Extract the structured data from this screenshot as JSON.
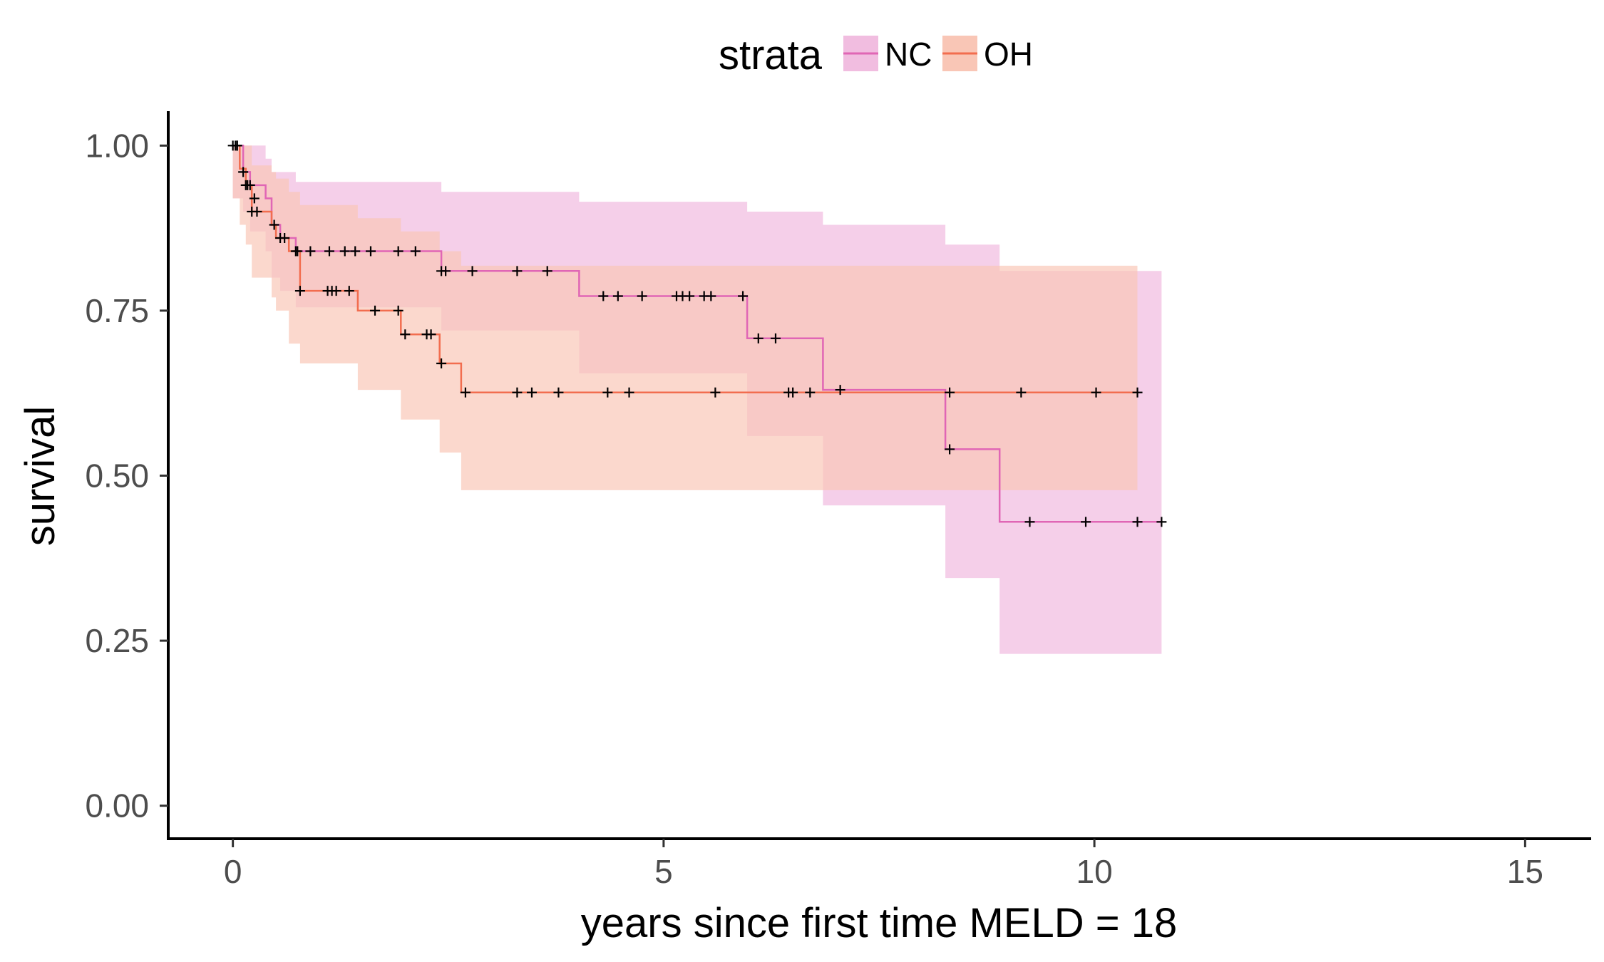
{
  "chart_data": {
    "type": "line",
    "subtype": "kaplan-meier",
    "title": "",
    "xlabel": "years since first time MELD = 18",
    "ylabel": "survival",
    "xlim": [
      -0.75,
      15.75
    ],
    "ylim": [
      -0.05,
      1.05
    ],
    "x_ticks": [
      0,
      5,
      10,
      15
    ],
    "x_tick_labels": [
      "0",
      "5",
      "10",
      "15"
    ],
    "y_ticks": [
      0,
      0.25,
      0.5,
      0.75,
      1
    ],
    "y_tick_labels": [
      "0.00",
      "0.25",
      "0.50",
      "0.75",
      "1.00"
    ],
    "grid": false,
    "legend": {
      "title": "strata",
      "position": "top"
    },
    "series": [
      {
        "name": "NC",
        "color": "#e066b5",
        "ribbon_color": "#f1bde0",
        "steps": [
          [
            0,
            1.0
          ],
          [
            0.12,
            0.96
          ],
          [
            0.2,
            0.94
          ],
          [
            0.38,
            0.92
          ],
          [
            0.45,
            0.88
          ],
          [
            0.55,
            0.86
          ],
          [
            0.73,
            0.84
          ],
          [
            2.42,
            0.81
          ],
          [
            4.02,
            0.772
          ],
          [
            5.97,
            0.708
          ],
          [
            6.85,
            0.63
          ],
          [
            8.27,
            0.54
          ],
          [
            8.9,
            0.43
          ],
          [
            10.78,
            0.43
          ]
        ],
        "lower": [
          [
            0,
            0.92
          ],
          [
            0.12,
            0.9
          ],
          [
            0.2,
            0.87
          ],
          [
            0.38,
            0.84
          ],
          [
            0.45,
            0.8
          ],
          [
            0.55,
            0.78
          ],
          [
            0.73,
            0.755
          ],
          [
            2.42,
            0.72
          ],
          [
            4.02,
            0.655
          ],
          [
            5.97,
            0.56
          ],
          [
            6.85,
            0.455
          ],
          [
            8.27,
            0.345
          ],
          [
            8.9,
            0.23
          ],
          [
            10.78,
            0.23
          ]
        ],
        "upper": [
          [
            0,
            1.0
          ],
          [
            0.12,
            1.0
          ],
          [
            0.2,
            1.0
          ],
          [
            0.38,
            0.98
          ],
          [
            0.45,
            0.96
          ],
          [
            0.55,
            0.96
          ],
          [
            0.73,
            0.945
          ],
          [
            2.42,
            0.93
          ],
          [
            4.02,
            0.915
          ],
          [
            5.97,
            0.9
          ],
          [
            6.85,
            0.88
          ],
          [
            8.27,
            0.85
          ],
          [
            8.9,
            0.81
          ],
          [
            10.78,
            0.81
          ]
        ],
        "censors": [
          [
            0.0,
            1.0
          ],
          [
            0.03,
            1.0
          ],
          [
            0.05,
            1.0
          ],
          [
            0.12,
            0.96
          ],
          [
            0.17,
            0.94
          ],
          [
            0.2,
            0.94
          ],
          [
            0.25,
            0.92
          ],
          [
            0.48,
            0.88
          ],
          [
            0.55,
            0.86
          ],
          [
            0.6,
            0.86
          ],
          [
            0.73,
            0.84
          ],
          [
            0.75,
            0.84
          ],
          [
            0.9,
            0.84
          ],
          [
            1.12,
            0.84
          ],
          [
            1.3,
            0.84
          ],
          [
            1.42,
            0.84
          ],
          [
            1.6,
            0.84
          ],
          [
            1.92,
            0.84
          ],
          [
            2.12,
            0.84
          ],
          [
            2.42,
            0.81
          ],
          [
            2.47,
            0.81
          ],
          [
            2.78,
            0.81
          ],
          [
            3.3,
            0.81
          ],
          [
            3.65,
            0.81
          ],
          [
            4.3,
            0.772
          ],
          [
            4.47,
            0.772
          ],
          [
            4.75,
            0.772
          ],
          [
            5.15,
            0.772
          ],
          [
            5.22,
            0.772
          ],
          [
            5.3,
            0.772
          ],
          [
            5.47,
            0.772
          ],
          [
            5.55,
            0.772
          ],
          [
            5.92,
            0.772
          ],
          [
            6.1,
            0.708
          ],
          [
            6.3,
            0.708
          ],
          [
            7.05,
            0.63
          ],
          [
            8.32,
            0.54
          ],
          [
            9.25,
            0.43
          ],
          [
            9.9,
            0.43
          ],
          [
            10.5,
            0.43
          ],
          [
            10.78,
            0.43
          ]
        ]
      },
      {
        "name": "OH",
        "color": "#f26d4f",
        "ribbon_color": "#f9c6b6",
        "steps": [
          [
            0,
            1.0
          ],
          [
            0.08,
            0.965
          ],
          [
            0.15,
            0.94
          ],
          [
            0.22,
            0.9
          ],
          [
            0.45,
            0.88
          ],
          [
            0.5,
            0.86
          ],
          [
            0.65,
            0.84
          ],
          [
            0.78,
            0.78
          ],
          [
            1.45,
            0.75
          ],
          [
            1.95,
            0.714
          ],
          [
            2.4,
            0.67
          ],
          [
            2.65,
            0.626
          ],
          [
            10.5,
            0.626
          ]
        ],
        "lower": [
          [
            0,
            0.92
          ],
          [
            0.08,
            0.88
          ],
          [
            0.15,
            0.85
          ],
          [
            0.22,
            0.8
          ],
          [
            0.45,
            0.77
          ],
          [
            0.5,
            0.75
          ],
          [
            0.65,
            0.7
          ],
          [
            0.78,
            0.67
          ],
          [
            1.45,
            0.63
          ],
          [
            1.95,
            0.585
          ],
          [
            2.4,
            0.535
          ],
          [
            2.65,
            0.478
          ],
          [
            10.5,
            0.478
          ]
        ],
        "upper": [
          [
            0,
            1.0
          ],
          [
            0.08,
            1.0
          ],
          [
            0.15,
            1.0
          ],
          [
            0.22,
            0.97
          ],
          [
            0.45,
            0.96
          ],
          [
            0.5,
            0.95
          ],
          [
            0.65,
            0.93
          ],
          [
            0.78,
            0.91
          ],
          [
            1.45,
            0.89
          ],
          [
            1.95,
            0.87
          ],
          [
            2.4,
            0.84
          ],
          [
            2.65,
            0.818
          ],
          [
            10.5,
            0.818
          ]
        ],
        "censors": [
          [
            0.05,
            1.0
          ],
          [
            0.15,
            0.94
          ],
          [
            0.22,
            0.9
          ],
          [
            0.28,
            0.9
          ],
          [
            0.78,
            0.78
          ],
          [
            1.1,
            0.78
          ],
          [
            1.15,
            0.78
          ],
          [
            1.2,
            0.78
          ],
          [
            1.35,
            0.78
          ],
          [
            1.65,
            0.75
          ],
          [
            1.92,
            0.75
          ],
          [
            2.0,
            0.714
          ],
          [
            2.25,
            0.714
          ],
          [
            2.3,
            0.714
          ],
          [
            2.42,
            0.67
          ],
          [
            2.7,
            0.626
          ],
          [
            3.3,
            0.626
          ],
          [
            3.47,
            0.626
          ],
          [
            3.78,
            0.626
          ],
          [
            4.35,
            0.626
          ],
          [
            4.6,
            0.626
          ],
          [
            5.6,
            0.626
          ],
          [
            6.45,
            0.626
          ],
          [
            6.5,
            0.626
          ],
          [
            6.7,
            0.626
          ],
          [
            8.32,
            0.626
          ],
          [
            9.15,
            0.626
          ],
          [
            10.02,
            0.626
          ],
          [
            10.5,
            0.626
          ]
        ]
      }
    ]
  }
}
